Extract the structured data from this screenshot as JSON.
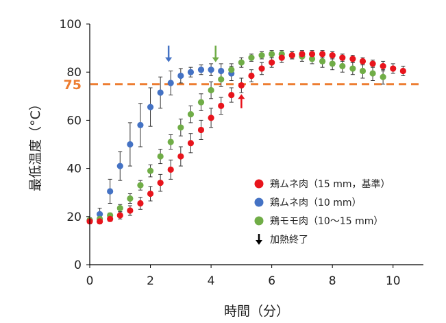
{
  "chart_data": {
    "type": "scatter",
    "xlabel": "時間（分）",
    "ylabel": "最低温度（°C）",
    "xlim": [
      0,
      11
    ],
    "ylim": [
      0,
      100
    ],
    "xticks": [
      0,
      2,
      4,
      6,
      8,
      10
    ],
    "yticks": [
      0,
      20,
      40,
      60,
      80,
      100
    ],
    "grid": false,
    "legend_position": "bottom-right",
    "reference_line": {
      "y": 75,
      "label": "75",
      "color": "#ed7d31",
      "style": "dashed"
    },
    "series": [
      {
        "name": "鶏ムネ肉（15 mm，基準）",
        "color": "#e8141c",
        "points": [
          {
            "x": 0,
            "y": 18,
            "err": 1
          },
          {
            "x": 0.33,
            "y": 18,
            "err": 1
          },
          {
            "x": 0.67,
            "y": 19,
            "err": 1
          },
          {
            "x": 1,
            "y": 20.5,
            "err": 1.5
          },
          {
            "x": 1.33,
            "y": 22.5,
            "err": 2
          },
          {
            "x": 1.67,
            "y": 25.5,
            "err": 2.5
          },
          {
            "x": 2,
            "y": 29.5,
            "err": 3
          },
          {
            "x": 2.33,
            "y": 34,
            "err": 3.5
          },
          {
            "x": 2.67,
            "y": 39.5,
            "err": 4
          },
          {
            "x": 3,
            "y": 45,
            "err": 4
          },
          {
            "x": 3.33,
            "y": 50.5,
            "err": 4
          },
          {
            "x": 3.67,
            "y": 56,
            "err": 4
          },
          {
            "x": 4,
            "y": 61,
            "err": 4
          },
          {
            "x": 4.33,
            "y": 66,
            "err": 3.5
          },
          {
            "x": 4.67,
            "y": 70.5,
            "err": 3
          },
          {
            "x": 5,
            "y": 74.5,
            "err": 3
          },
          {
            "x": 5.33,
            "y": 78.5,
            "err": 2.5
          },
          {
            "x": 5.67,
            "y": 81.5,
            "err": 2.5
          },
          {
            "x": 6,
            "y": 84,
            "err": 2
          },
          {
            "x": 6.33,
            "y": 86,
            "err": 2
          },
          {
            "x": 6.67,
            "y": 87,
            "err": 1.5
          },
          {
            "x": 7,
            "y": 87.5,
            "err": 1.5
          },
          {
            "x": 7.33,
            "y": 87.5,
            "err": 1.5
          },
          {
            "x": 7.67,
            "y": 87.5,
            "err": 1.5
          },
          {
            "x": 8,
            "y": 87,
            "err": 1.5
          },
          {
            "x": 8.33,
            "y": 86,
            "err": 1.5
          },
          {
            "x": 8.67,
            "y": 85.5,
            "err": 1.5
          },
          {
            "x": 9,
            "y": 84.5,
            "err": 1.5
          },
          {
            "x": 9.33,
            "y": 83.5,
            "err": 1.5
          },
          {
            "x": 9.67,
            "y": 82.5,
            "err": 2
          },
          {
            "x": 10,
            "y": 81.5,
            "err": 2
          },
          {
            "x": 10.33,
            "y": 80.5,
            "err": 2
          }
        ]
      },
      {
        "name": "鶏ムネ肉（10 mm）",
        "color": "#4472c4",
        "points": [
          {
            "x": 0,
            "y": 18.5,
            "err": 1
          },
          {
            "x": 0.33,
            "y": 21,
            "err": 2.5
          },
          {
            "x": 0.67,
            "y": 30.5,
            "err": 5
          },
          {
            "x": 1,
            "y": 41,
            "err": 6
          },
          {
            "x": 1.33,
            "y": 50,
            "err": 9
          },
          {
            "x": 1.67,
            "y": 58,
            "err": 9
          },
          {
            "x": 2,
            "y": 65.5,
            "err": 8
          },
          {
            "x": 2.33,
            "y": 71.5,
            "err": 6.5
          },
          {
            "x": 2.67,
            "y": 75.5,
            "err": 5
          },
          {
            "x": 3,
            "y": 78.5,
            "err": 3
          },
          {
            "x": 3.33,
            "y": 80,
            "err": 2
          },
          {
            "x": 3.67,
            "y": 81,
            "err": 2
          },
          {
            "x": 4,
            "y": 81,
            "err": 2.5
          },
          {
            "x": 4.33,
            "y": 80.5,
            "err": 3
          },
          {
            "x": 4.67,
            "y": 79.5,
            "err": 3
          }
        ]
      },
      {
        "name": "鶏モモ肉（10～15 mm）",
        "color": "#70ad47",
        "points": [
          {
            "x": 0,
            "y": 18.5,
            "err": 1
          },
          {
            "x": 0.33,
            "y": 19,
            "err": 1
          },
          {
            "x": 0.67,
            "y": 20.5,
            "err": 1
          },
          {
            "x": 1,
            "y": 23.5,
            "err": 1.5
          },
          {
            "x": 1.33,
            "y": 27.5,
            "err": 2
          },
          {
            "x": 1.67,
            "y": 33,
            "err": 2
          },
          {
            "x": 2,
            "y": 39,
            "err": 2.5
          },
          {
            "x": 2.33,
            "y": 45,
            "err": 3
          },
          {
            "x": 2.67,
            "y": 51,
            "err": 3
          },
          {
            "x": 3,
            "y": 57,
            "err": 3.5
          },
          {
            "x": 3.33,
            "y": 62.5,
            "err": 3.5
          },
          {
            "x": 3.67,
            "y": 67.5,
            "err": 3.5
          },
          {
            "x": 4,
            "y": 72.5,
            "err": 3.5
          },
          {
            "x": 4.33,
            "y": 77,
            "err": 3
          },
          {
            "x": 4.67,
            "y": 81,
            "err": 2.5
          },
          {
            "x": 5,
            "y": 84,
            "err": 2
          },
          {
            "x": 5.33,
            "y": 86,
            "err": 1.5
          },
          {
            "x": 5.67,
            "y": 87,
            "err": 1.5
          },
          {
            "x": 6,
            "y": 87.5,
            "err": 1.5
          },
          {
            "x": 6.33,
            "y": 87.5,
            "err": 1.5
          },
          {
            "x": 6.67,
            "y": 87,
            "err": 1.5
          },
          {
            "x": 7,
            "y": 86.5,
            "err": 2
          },
          {
            "x": 7.33,
            "y": 85.5,
            "err": 2
          },
          {
            "x": 7.67,
            "y": 84.5,
            "err": 2.5
          },
          {
            "x": 8,
            "y": 83.5,
            "err": 2.5
          },
          {
            "x": 8.33,
            "y": 82.5,
            "err": 2.5
          },
          {
            "x": 8.67,
            "y": 81.5,
            "err": 2.5
          },
          {
            "x": 9,
            "y": 80.5,
            "err": 3
          },
          {
            "x": 9.33,
            "y": 79.5,
            "err": 3
          },
          {
            "x": 9.67,
            "y": 78,
            "err": 3
          }
        ]
      }
    ],
    "annotations": [
      {
        "type": "arrow-down",
        "x": 2.6,
        "y_from": 91,
        "y_to": 85,
        "color": "#4472c4"
      },
      {
        "type": "arrow-down",
        "x": 4.15,
        "y_from": 91,
        "y_to": 85,
        "color": "#70ad47"
      },
      {
        "type": "arrow-up",
        "x": 5.0,
        "y_from": 65,
        "y_to": 70,
        "color": "#e8141c"
      }
    ],
    "legend": [
      {
        "marker": "circle",
        "color": "#e8141c",
        "label": "鶏ムネ肉（15 mm，基準）"
      },
      {
        "marker": "circle",
        "color": "#4472c4",
        "label": "鶏ムネ肉（10 mm）"
      },
      {
        "marker": "circle",
        "color": "#70ad47",
        "label": "鶏モモ肉（10～15 mm）"
      },
      {
        "marker": "arrow-down",
        "color": "#000000",
        "label": "加熱終了"
      }
    ]
  }
}
